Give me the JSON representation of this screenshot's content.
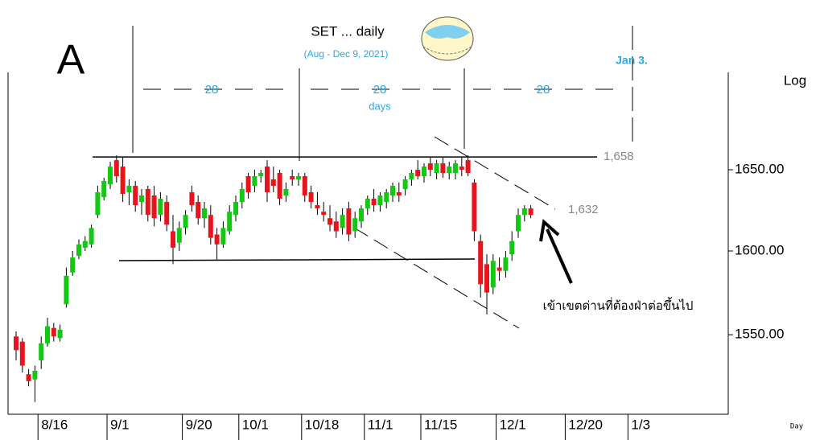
{
  "chart_data": {
    "type": "candlestick",
    "title": "SET ... daily",
    "subtitle": "(Aug - Dec 9, 2021)",
    "y_axis_label": "Log",
    "x_axis_label": "Day",
    "log_scale": true,
    "up_color": "#12c812",
    "down_color": "#e8141b",
    "ylim": [
      1504,
      1712
    ],
    "yticks": [
      {
        "value": 1550,
        "label": "1550.00"
      },
      {
        "value": 1600,
        "label": "1600.00"
      },
      {
        "value": 1650,
        "label": "1650.00"
      }
    ],
    "levels": [
      {
        "value": 1658,
        "label": "1,658"
      },
      {
        "value": 1632,
        "label": "1,632"
      }
    ],
    "annotations": [
      "A",
      "28",
      "28",
      "days",
      "28",
      "Jan 3.",
      "เข้าเขตด่านที่ต้องฝ่าต่อขึ้นไป"
    ],
    "categories": [
      null,
      null,
      null,
      null,
      "8/16",
      null,
      null,
      null,
      null,
      null,
      null,
      null,
      null,
      null,
      null,
      "9/1",
      null,
      null,
      null,
      null,
      null,
      null,
      null,
      null,
      null,
      null,
      null,
      "9/20",
      null,
      null,
      null,
      null,
      null,
      null,
      null,
      null,
      "10/1",
      null,
      null,
      null,
      null,
      null,
      null,
      null,
      null,
      null,
      "10/18",
      null,
      null,
      null,
      null,
      null,
      null,
      null,
      null,
      null,
      "11/1",
      null,
      null,
      null,
      null,
      null,
      null,
      null,
      null,
      "11/15",
      null,
      null,
      null,
      null,
      null,
      null,
      null,
      null,
      null,
      null,
      null,
      "12/1",
      null,
      null,
      null,
      null,
      null,
      null,
      null,
      null,
      null,
      null,
      "12/20",
      null,
      null,
      null,
      null,
      null,
      null,
      null,
      null,
      null,
      "1/3",
      null,
      null,
      null,
      null,
      null,
      null,
      null,
      null,
      null,
      null,
      null,
      null,
      null,
      null
    ],
    "open": [
      1549,
      1546,
      1527,
      1524,
      1535,
      1545,
      1554,
      1548,
      1568,
      1587,
      1597,
      1602,
      1604,
      1622,
      1633,
      1641,
      1656,
      1652,
      1636,
      1640,
      1630,
      1638,
      1634,
      1622,
      1630,
      1612,
      1605,
      1614,
      1636,
      1630,
      1620,
      1622,
      1610,
      1604,
      1612,
      1622,
      1630,
      1646,
      1640,
      1646,
      1652,
      1644,
      1648,
      1634,
      1646,
      1644,
      1646,
      1636,
      1628,
      1624,
      1620,
      1618,
      1614,
      1626,
      1612,
      1618,
      1626,
      1632,
      1628,
      1630,
      1634,
      1636,
      1638,
      1644,
      1650,
      1646,
      1654,
      1648,
      1654,
      1648,
      1648,
      1652,
      1656,
      1642,
      1606,
      1592,
      1578,
      1590,
      1588,
      1598,
      1612,
      1622,
      1626,
      null,
      null,
      null,
      null,
      null,
      null,
      null,
      null,
      null,
      null,
      null,
      null,
      null,
      null,
      null,
      null,
      null,
      null,
      null,
      null,
      null,
      null,
      null,
      null,
      null,
      null,
      null,
      null,
      null,
      null
    ],
    "high": [
      1552,
      1548,
      1530,
      1532,
      1549,
      1560,
      1557,
      1556,
      1590,
      1600,
      1607,
      1609,
      1616,
      1640,
      1645,
      1655,
      1659,
      1658,
      1644,
      1643,
      1638,
      1640,
      1640,
      1636,
      1634,
      1622,
      1618,
      1625,
      1640,
      1634,
      1630,
      1628,
      1614,
      1618,
      1628,
      1634,
      1642,
      1648,
      1650,
      1650,
      1656,
      1652,
      1650,
      1642,
      1650,
      1648,
      1648,
      1640,
      1636,
      1630,
      1628,
      1624,
      1626,
      1630,
      1624,
      1628,
      1634,
      1638,
      1636,
      1638,
      1642,
      1642,
      1646,
      1650,
      1656,
      1654,
      1658,
      1656,
      1658,
      1655,
      1656,
      1658,
      1659,
      1644,
      1610,
      1598,
      1598,
      1596,
      1600,
      1612,
      1626,
      1628,
      1628,
      null,
      null,
      null,
      null,
      null,
      null,
      null,
      null,
      null,
      null,
      null,
      null,
      null,
      null,
      null,
      null,
      null,
      null,
      null,
      null,
      null,
      null,
      null,
      null,
      null,
      null,
      null,
      null,
      null,
      null
    ],
    "low": [
      1535,
      1528,
      1520,
      1511,
      1530,
      1543,
      1546,
      1546,
      1566,
      1585,
      1595,
      1600,
      1602,
      1620,
      1631,
      1638,
      1642,
      1630,
      1628,
      1624,
      1622,
      1618,
      1615,
      1618,
      1612,
      1592,
      1600,
      1610,
      1624,
      1616,
      1614,
      1604,
      1594,
      1602,
      1610,
      1618,
      1626,
      1632,
      1636,
      1642,
      1630,
      1636,
      1628,
      1630,
      1640,
      1640,
      1630,
      1626,
      1622,
      1618,
      1612,
      1608,
      1610,
      1606,
      1608,
      1614,
      1622,
      1624,
      1624,
      1626,
      1630,
      1630,
      1634,
      1640,
      1644,
      1642,
      1646,
      1644,
      1645,
      1644,
      1644,
      1646,
      1646,
      1606,
      1572,
      1562,
      1574,
      1582,
      1584,
      1594,
      1608,
      1618,
      1620,
      null,
      null,
      null,
      null,
      null,
      null,
      null,
      null,
      null,
      null,
      null,
      null,
      null,
      null,
      null,
      null,
      null,
      null,
      null,
      null,
      null,
      null,
      null,
      null,
      null,
      null,
      null,
      null,
      null,
      null
    ],
    "close": [
      1541,
      1532,
      1523,
      1529,
      1545,
      1555,
      1549,
      1553,
      1585,
      1596,
      1604,
      1606,
      1614,
      1636,
      1643,
      1652,
      1646,
      1635,
      1640,
      1628,
      1634,
      1622,
      1620,
      1632,
      1616,
      1602,
      1614,
      1622,
      1628,
      1620,
      1626,
      1608,
      1604,
      1614,
      1624,
      1630,
      1638,
      1636,
      1646,
      1648,
      1636,
      1640,
      1632,
      1638,
      1644,
      1646,
      1634,
      1630,
      1626,
      1622,
      1616,
      1612,
      1622,
      1610,
      1620,
      1626,
      1632,
      1628,
      1634,
      1636,
      1640,
      1634,
      1644,
      1648,
      1646,
      1652,
      1650,
      1654,
      1648,
      1652,
      1654,
      1650,
      1648,
      1612,
      1580,
      1575,
      1594,
      1588,
      1596,
      1606,
      1622,
      1626,
      1622,
      null,
      null,
      null,
      null,
      null,
      null,
      null,
      null,
      null,
      null,
      null,
      null,
      null,
      null,
      null,
      null,
      null,
      null,
      null,
      null,
      null,
      null,
      null,
      null,
      null,
      null,
      null,
      null,
      null,
      null
    ]
  }
}
